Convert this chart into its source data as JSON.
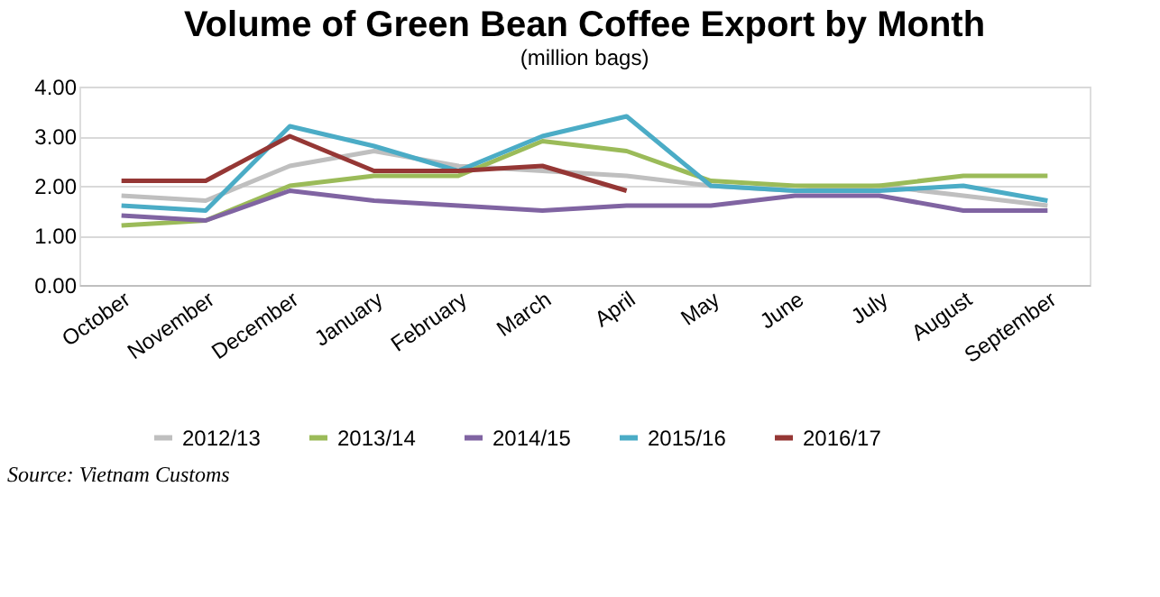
{
  "chart_data": {
    "type": "line",
    "title": "Volume of Green Bean Coffee Export by Month",
    "subtitle": "(million bags)",
    "categories": [
      "October",
      "November",
      "December",
      "January",
      "February",
      "March",
      "April",
      "May",
      "June",
      "July",
      "August",
      "September"
    ],
    "series": [
      {
        "name": "2012/13",
        "color": "#bfbfbf",
        "values": [
          1.8,
          1.7,
          2.4,
          2.7,
          2.4,
          2.3,
          2.2,
          2.0,
          1.9,
          2.0,
          1.8,
          1.6
        ]
      },
      {
        "name": "2013/14",
        "color": "#9bbb59",
        "values": [
          1.2,
          1.3,
          2.0,
          2.2,
          2.2,
          2.9,
          2.7,
          2.1,
          2.0,
          2.0,
          2.2,
          2.2
        ]
      },
      {
        "name": "2014/15",
        "color": "#8064a2",
        "values": [
          1.4,
          1.3,
          1.9,
          1.7,
          1.6,
          1.5,
          1.6,
          1.6,
          1.8,
          1.8,
          1.5,
          1.5
        ]
      },
      {
        "name": "2015/16",
        "color": "#4bacc6",
        "values": [
          1.6,
          1.5,
          3.2,
          2.8,
          2.3,
          3.0,
          3.4,
          2.0,
          1.9,
          1.9,
          2.0,
          1.7
        ]
      },
      {
        "name": "2016/17",
        "color": "#953735",
        "values": [
          2.1,
          2.1,
          3.0,
          2.3,
          2.3,
          2.4,
          1.9,
          null,
          null,
          null,
          null,
          null
        ]
      }
    ],
    "ylim": [
      0,
      4
    ],
    "yticks": [
      {
        "value": 0,
        "label": "0.00"
      },
      {
        "value": 1,
        "label": "1.00"
      },
      {
        "value": 2,
        "label": "2.00"
      },
      {
        "value": 3,
        "label": "3.00"
      },
      {
        "value": 4,
        "label": "4.00"
      }
    ],
    "grid": "y",
    "legend": "bottom",
    "marker": "none",
    "line_style": "solid",
    "annotations": [
      "Source: Vietnam Customs"
    ]
  }
}
